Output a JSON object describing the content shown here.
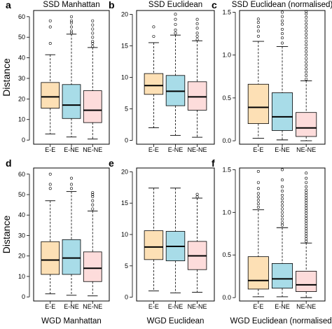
{
  "colors": {
    "E-E": "#fde0b5",
    "E-NE": "#a8dce8",
    "NE-NE": "#fddcdb"
  },
  "chart_data": [
    {
      "type": "boxplot",
      "letter": "a",
      "title": "SSD Manhattan",
      "bottom_title": "",
      "ylabel": "Distance",
      "ylim": [
        -2,
        63
      ],
      "yticks": [
        0,
        10,
        20,
        30,
        40,
        50,
        60
      ],
      "categories": [
        "E-E",
        "E-NE",
        "NE-NE"
      ],
      "boxes": [
        {
          "min": 3,
          "q1": 15.5,
          "median": 21,
          "q3": 28,
          "max": 41.5,
          "outliers": [
            47,
            55,
            58
          ]
        },
        {
          "min": 1.5,
          "q1": 10.5,
          "median": 17,
          "q3": 27,
          "max": 51.5,
          "outliers": [
            52,
            53,
            55,
            57,
            58,
            60
          ]
        },
        {
          "min": 0.5,
          "q1": 8.5,
          "median": 14.5,
          "q3": 24,
          "max": 45,
          "outliers": [
            45.5,
            47,
            48,
            50,
            52,
            54,
            56,
            58
          ]
        }
      ]
    },
    {
      "type": "boxplot",
      "letter": "b",
      "title": "SSD Euclidean",
      "bottom_title": "",
      "ylabel": "",
      "ylim": [
        -0.6,
        20.6
      ],
      "yticks": [
        0,
        5,
        10,
        15,
        20
      ],
      "categories": [
        "E-E",
        "E-NE",
        "NE-NE"
      ],
      "boxes": [
        {
          "min": 2,
          "q1": 7.3,
          "median": 8.7,
          "q3": 10.6,
          "max": 15.5,
          "outliers": [
            16.5,
            18
          ]
        },
        {
          "min": 0.8,
          "q1": 5.5,
          "median": 7.8,
          "q3": 10.3,
          "max": 16.7,
          "outliers": [
            17,
            17.5,
            18.4,
            19.2,
            20
          ]
        },
        {
          "min": 0.5,
          "q1": 4.8,
          "median": 6.9,
          "q3": 9.3,
          "max": 15.8,
          "outliers": [
            16,
            16.5,
            17,
            17.8,
            18.5,
            19.2
          ]
        }
      ]
    },
    {
      "type": "boxplot",
      "letter": "c",
      "title": "SSD Euclidean (normalised)",
      "bottom_title": "",
      "ylabel": "",
      "ylim": [
        -0.04,
        1.52
      ],
      "yticks": [
        0.0,
        0.5,
        1.0,
        1.5
      ],
      "categories": [
        "E-E",
        "E-NE",
        "NE-NE"
      ],
      "boxes": [
        {
          "min": 0.03,
          "q1": 0.2,
          "median": 0.39,
          "q3": 0.66,
          "max": 1.16,
          "outliers": [
            1.22,
            1.28,
            1.33,
            1.38,
            1.42
          ]
        },
        {
          "min": 0.01,
          "q1": 0.12,
          "median": 0.28,
          "q3": 0.56,
          "max": 1.1,
          "outliers": [
            1.14,
            1.2,
            1.25,
            1.3,
            1.36,
            1.4,
            1.45,
            1.5
          ]
        },
        {
          "min": 0.0,
          "q1": 0.05,
          "median": 0.15,
          "q3": 0.33,
          "max": 0.7,
          "outliers": [
            0.72,
            0.76,
            0.8,
            0.84,
            0.88,
            0.92,
            0.96,
            1.0,
            1.04,
            1.08,
            1.12,
            1.16,
            1.2,
            1.24,
            1.28,
            1.32,
            1.36,
            1.4,
            1.44,
            1.48,
            1.51
          ]
        }
      ]
    },
    {
      "type": "boxplot",
      "letter": "d",
      "title": "",
      "bottom_title": "WGD Manhattan",
      "ylabel": "Distance",
      "ylim": [
        -2,
        63
      ],
      "yticks": [
        0,
        10,
        20,
        30,
        40,
        50,
        60
      ],
      "categories": [
        "E-E",
        "E-NE",
        "NE-NE"
      ],
      "boxes": [
        {
          "min": 1.5,
          "q1": 11,
          "median": 18,
          "q3": 27,
          "max": 47,
          "outliers": [
            53,
            55,
            60
          ]
        },
        {
          "min": 0.8,
          "q1": 11,
          "median": 19,
          "q3": 28,
          "max": 51.5,
          "outliers": [
            53,
            55,
            58
          ]
        },
        {
          "min": 0.5,
          "q1": 7.5,
          "median": 14,
          "q3": 22,
          "max": 42,
          "outliers": [
            43,
            45,
            47,
            49,
            50,
            51
          ]
        }
      ]
    },
    {
      "type": "boxplot",
      "letter": "e",
      "title": "",
      "bottom_title": "WGD Euclidean",
      "ylabel": "",
      "ylim": [
        -0.6,
        20.6
      ],
      "yticks": [
        0,
        5,
        10,
        15,
        20
      ],
      "categories": [
        "E-E",
        "E-NE",
        "NE-NE"
      ],
      "boxes": [
        {
          "min": 1,
          "q1": 6,
          "median": 8,
          "q3": 10.6,
          "max": 17.4,
          "outliers": []
        },
        {
          "min": 0.7,
          "q1": 5.8,
          "median": 8.1,
          "q3": 10.5,
          "max": 17.4,
          "outliers": []
        },
        {
          "min": 0.8,
          "q1": 4.4,
          "median": 6.6,
          "q3": 8.9,
          "max": 15.8,
          "outliers": [
            16,
            16.4
          ]
        }
      ]
    },
    {
      "type": "boxplot",
      "letter": "f",
      "title": "",
      "bottom_title": "WGD Euclidean (normalised)",
      "ylabel": "",
      "ylim": [
        -0.04,
        1.52
      ],
      "yticks": [
        0.0,
        0.5,
        1.0,
        1.5
      ],
      "categories": [
        "E-E",
        "E-NE",
        "NE-NE"
      ],
      "boxes": [
        {
          "min": 0.01,
          "q1": 0.1,
          "median": 0.2,
          "q3": 0.48,
          "max": 1.03,
          "outliers": [
            1.06,
            1.1,
            1.14,
            1.18,
            1.22,
            1.28,
            1.35,
            1.48
          ]
        },
        {
          "min": 0.01,
          "q1": 0.11,
          "median": 0.22,
          "q3": 0.4,
          "max": 0.82,
          "outliers": [
            0.85,
            0.88,
            0.92,
            0.96,
            1.0,
            1.04,
            1.08,
            1.12,
            1.16,
            1.2,
            1.25,
            1.3,
            1.38,
            1.5
          ]
        },
        {
          "min": 0.0,
          "q1": 0.07,
          "median": 0.15,
          "q3": 0.31,
          "max": 0.64,
          "outliers": [
            0.66,
            0.69,
            0.72,
            0.75,
            0.78,
            0.81,
            0.84,
            0.87,
            0.9,
            0.93,
            0.96,
            0.99,
            1.02,
            1.05,
            1.08,
            1.11,
            1.14,
            1.17,
            1.2,
            1.23,
            1.26,
            1.3,
            1.35,
            1.4,
            1.46
          ]
        }
      ]
    }
  ]
}
